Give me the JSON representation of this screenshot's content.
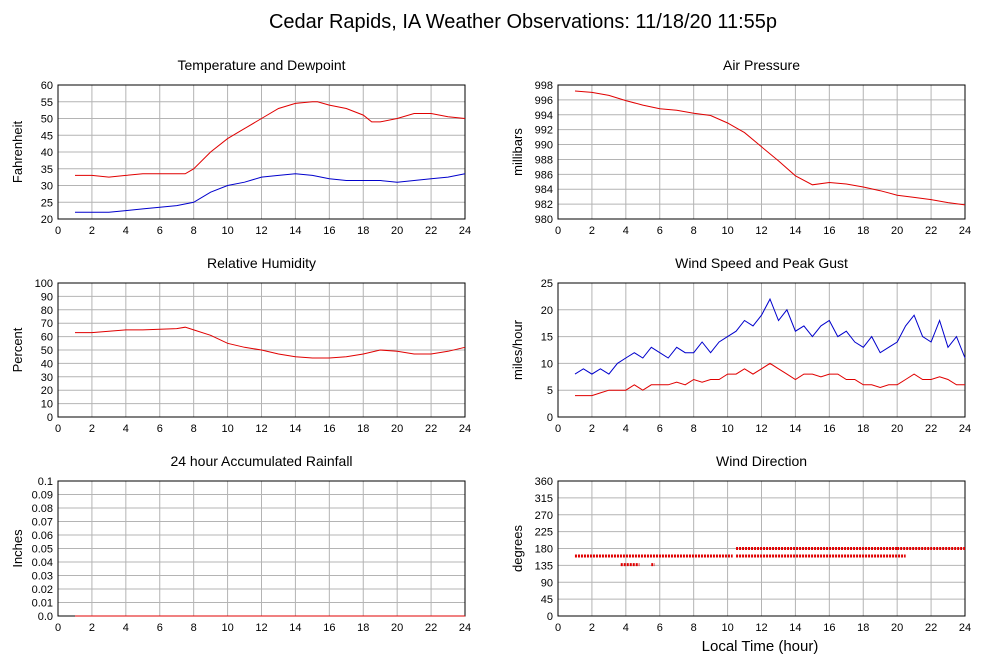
{
  "title": "Cedar Rapids, IA Weather Observations: 11/18/20 11:55p",
  "xaxis_label": "Local Time (hour)",
  "colors": {
    "temperature": "#e00000",
    "dewpoint": "#0000cc",
    "pressure": "#e00000",
    "humidity": "#e00000",
    "gust": "#0000cc",
    "wind": "#e00000",
    "rain": "#e00000",
    "direction": "#e00000",
    "grid": "#b4b4b4"
  },
  "chart_data": [
    {
      "type": "line",
      "title": "Temperature and Dewpoint",
      "xlabel": "",
      "ylabel": "Fahrenheit",
      "xlim": [
        0,
        24
      ],
      "ylim": [
        20,
        60
      ],
      "xticks": [
        2,
        4,
        6,
        8,
        10,
        12,
        14,
        16,
        18,
        20,
        22,
        24
      ],
      "yticks": [
        20,
        25,
        30,
        35,
        40,
        45,
        50,
        55,
        60
      ],
      "grid": true,
      "series": [
        {
          "key": "temperature",
          "x": [
            1,
            2,
            3,
            4,
            5,
            6,
            7,
            7.5,
            8,
            9,
            10,
            11,
            12,
            13,
            14,
            15,
            15.3,
            16,
            17,
            18,
            18.5,
            19,
            20,
            21,
            22,
            23,
            24
          ],
          "y": [
            33,
            33,
            32.5,
            33,
            33.5,
            33.5,
            33.5,
            33.5,
            35,
            40,
            44,
            47,
            50,
            53,
            54.5,
            55,
            55,
            54,
            53,
            51,
            49,
            49,
            50,
            51.5,
            51.5,
            50.5,
            50
          ]
        },
        {
          "key": "dewpoint",
          "x": [
            1,
            2,
            3,
            4,
            5,
            6,
            7,
            8,
            9,
            10,
            11,
            12,
            13,
            14,
            15,
            16,
            17,
            18,
            19,
            20,
            21,
            22,
            23,
            24
          ],
          "y": [
            22,
            22,
            22,
            22.5,
            23,
            23.5,
            24,
            25,
            28,
            30,
            31,
            32.5,
            33,
            33.5,
            33,
            32,
            31.5,
            31.5,
            31.5,
            31,
            31.5,
            32,
            32.5,
            33.5
          ]
        }
      ]
    },
    {
      "type": "line",
      "title": "Air Pressure",
      "xlabel": "",
      "ylabel": "millibars",
      "xlim": [
        0,
        24
      ],
      "ylim": [
        980,
        998
      ],
      "xticks": [
        2,
        4,
        6,
        8,
        10,
        12,
        14,
        16,
        18,
        20,
        22,
        24
      ],
      "yticks": [
        980,
        982,
        984,
        986,
        988,
        990,
        992,
        994,
        996,
        998
      ],
      "grid": true,
      "series": [
        {
          "key": "pressure",
          "x": [
            1,
            2,
            3,
            4,
            5,
            6,
            7,
            8,
            9,
            10,
            11,
            12,
            13,
            14,
            15,
            16,
            17,
            18,
            19,
            20,
            21,
            22,
            23,
            24
          ],
          "y": [
            997.2,
            997,
            996.6,
            995.9,
            995.3,
            994.8,
            994.6,
            994.2,
            993.9,
            992.9,
            991.6,
            989.7,
            987.8,
            985.8,
            984.6,
            984.9,
            984.7,
            984.3,
            983.8,
            983.2,
            982.9,
            982.6,
            982.2,
            981.9
          ]
        }
      ]
    },
    {
      "type": "line",
      "title": "Relative Humidity",
      "xlabel": "",
      "ylabel": "Percent",
      "xlim": [
        0,
        24
      ],
      "ylim": [
        0,
        100
      ],
      "xticks": [
        2,
        4,
        6,
        8,
        10,
        12,
        14,
        16,
        18,
        20,
        22,
        24
      ],
      "yticks": [
        0,
        10,
        20,
        30,
        40,
        50,
        60,
        70,
        80,
        90,
        100
      ],
      "grid": true,
      "series": [
        {
          "key": "humidity",
          "x": [
            1,
            2,
            3,
            4,
            5,
            6,
            7,
            7.5,
            8,
            9,
            10,
            11,
            12,
            13,
            14,
            15,
            16,
            17,
            18,
            19,
            20,
            21,
            22,
            23,
            24
          ],
          "y": [
            63,
            63,
            64,
            65,
            65,
            65.5,
            66,
            67,
            65,
            61,
            55,
            52,
            50,
            47,
            45,
            44,
            44,
            45,
            47,
            50,
            49,
            47,
            47,
            49,
            52
          ]
        }
      ]
    },
    {
      "type": "line",
      "title": "Wind Speed and Peak Gust",
      "xlabel": "",
      "ylabel": "miles/hour",
      "xlim": [
        0,
        24
      ],
      "ylim": [
        0,
        25
      ],
      "xticks": [
        2,
        4,
        6,
        8,
        10,
        12,
        14,
        16,
        18,
        20,
        22,
        24
      ],
      "yticks": [
        0,
        5,
        10,
        15,
        20,
        25
      ],
      "grid": true,
      "series": [
        {
          "key": "gust",
          "x": [
            1,
            1.5,
            2,
            2.5,
            3,
            3.5,
            4,
            4.5,
            5,
            5.5,
            6,
            6.5,
            7,
            7.5,
            8,
            8.5,
            9,
            9.5,
            10,
            10.5,
            11,
            11.5,
            12,
            12.5,
            13,
            13.5,
            14,
            14.5,
            15,
            15.5,
            16,
            16.5,
            17,
            17.5,
            18,
            18.5,
            19,
            19.5,
            20,
            20.5,
            21,
            21.5,
            22,
            22.5,
            23,
            23.5,
            24
          ],
          "y": [
            8,
            9,
            8,
            9,
            8,
            10,
            11,
            12,
            11,
            13,
            12,
            11,
            13,
            12,
            12,
            14,
            12,
            14,
            15,
            16,
            18,
            17,
            19,
            22,
            18,
            20,
            16,
            17,
            15,
            17,
            18,
            15,
            16,
            14,
            13,
            15,
            12,
            13,
            14,
            17,
            19,
            15,
            14,
            18,
            13,
            15,
            11
          ]
        },
        {
          "key": "wind",
          "x": [
            1,
            1.5,
            2,
            2.5,
            3,
            3.5,
            4,
            4.5,
            5,
            5.5,
            6,
            6.5,
            7,
            7.5,
            8,
            8.5,
            9,
            9.5,
            10,
            10.5,
            11,
            11.5,
            12,
            12.5,
            13,
            13.5,
            14,
            14.5,
            15,
            15.5,
            16,
            16.5,
            17,
            17.5,
            18,
            18.5,
            19,
            19.5,
            20,
            20.5,
            21,
            21.5,
            22,
            22.5,
            23,
            23.5,
            24
          ],
          "y": [
            4,
            4,
            4,
            4.5,
            5,
            5,
            5,
            6,
            5,
            6,
            6,
            6,
            6.5,
            6,
            7,
            6.5,
            7,
            7,
            8,
            8,
            9,
            8,
            9,
            10,
            9,
            8,
            7,
            8,
            8,
            7.5,
            8,
            8,
            7,
            7,
            6,
            6,
            5.5,
            6,
            6,
            7,
            8,
            7,
            7,
            7.5,
            7,
            6,
            6
          ]
        }
      ]
    },
    {
      "type": "line",
      "title": "24 hour Accumulated Rainfall",
      "xlabel": "",
      "ylabel": "Inches",
      "xlim": [
        0,
        24
      ],
      "ylim": [
        0,
        0.1
      ],
      "xticks": [
        2,
        4,
        6,
        8,
        10,
        12,
        14,
        16,
        18,
        20,
        22,
        24
      ],
      "yticks": [
        "0.0",
        "0.01",
        "0.02",
        "0.03",
        "0.04",
        "0.05",
        "0.06",
        "0.07",
        "0.08",
        "0.09",
        "0.1"
      ],
      "grid": true,
      "series": [
        {
          "key": "rain",
          "x": [
            1,
            24
          ],
          "y": [
            0,
            0
          ]
        }
      ]
    },
    {
      "type": "scatter",
      "title": "Wind Direction",
      "xlabel": "Local Time (hour)",
      "ylabel": "degrees",
      "xlim": [
        0,
        24
      ],
      "ylim": [
        0,
        360
      ],
      "xticks": [
        2,
        4,
        6,
        8,
        10,
        12,
        14,
        16,
        18,
        20,
        22,
        24
      ],
      "yticks": [
        0,
        45,
        90,
        135,
        180,
        225,
        270,
        315,
        360
      ],
      "grid": true,
      "series": [
        {
          "key": "direction",
          "segments": [
            {
              "x0": 1,
              "x1": 10.3,
              "y": 160
            },
            {
              "x0": 3.7,
              "x1": 4.8,
              "y": 137
            },
            {
              "x0": 5.5,
              "x1": 5.7,
              "y": 137
            },
            {
              "x0": 10.5,
              "x1": 20.5,
              "y": 160
            },
            {
              "x0": 10.5,
              "x1": 20.0,
              "y": 180
            },
            {
              "x0": 20.0,
              "x1": 24,
              "y": 180
            }
          ]
        }
      ]
    }
  ]
}
